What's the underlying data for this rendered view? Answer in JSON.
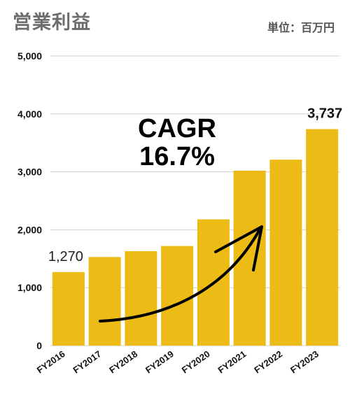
{
  "header": {
    "title": "営業利益",
    "unit": "単位：百万円"
  },
  "annotation": {
    "line1": "CAGR",
    "line2": "16.7%"
  },
  "chart_data": {
    "type": "bar",
    "title": "営業利益",
    "categories": [
      "FY2016",
      "FY2017",
      "FY2018",
      "FY2019",
      "FY2020",
      "FY2021",
      "FY2022",
      "FY2023"
    ],
    "values": [
      1270,
      1530,
      1630,
      1720,
      2180,
      3020,
      3210,
      3737
    ],
    "ylim": [
      0,
      5000
    ],
    "yticks": [
      "0",
      "1,000",
      "2,000",
      "3,000",
      "4,000",
      "5,000"
    ],
    "data_labels": [
      {
        "index": 0,
        "text": "1,270"
      },
      {
        "index": 7,
        "text": "3,737"
      }
    ],
    "bar_color": "#EDBB16",
    "grid": true,
    "xlabel": "",
    "ylabel": ""
  }
}
